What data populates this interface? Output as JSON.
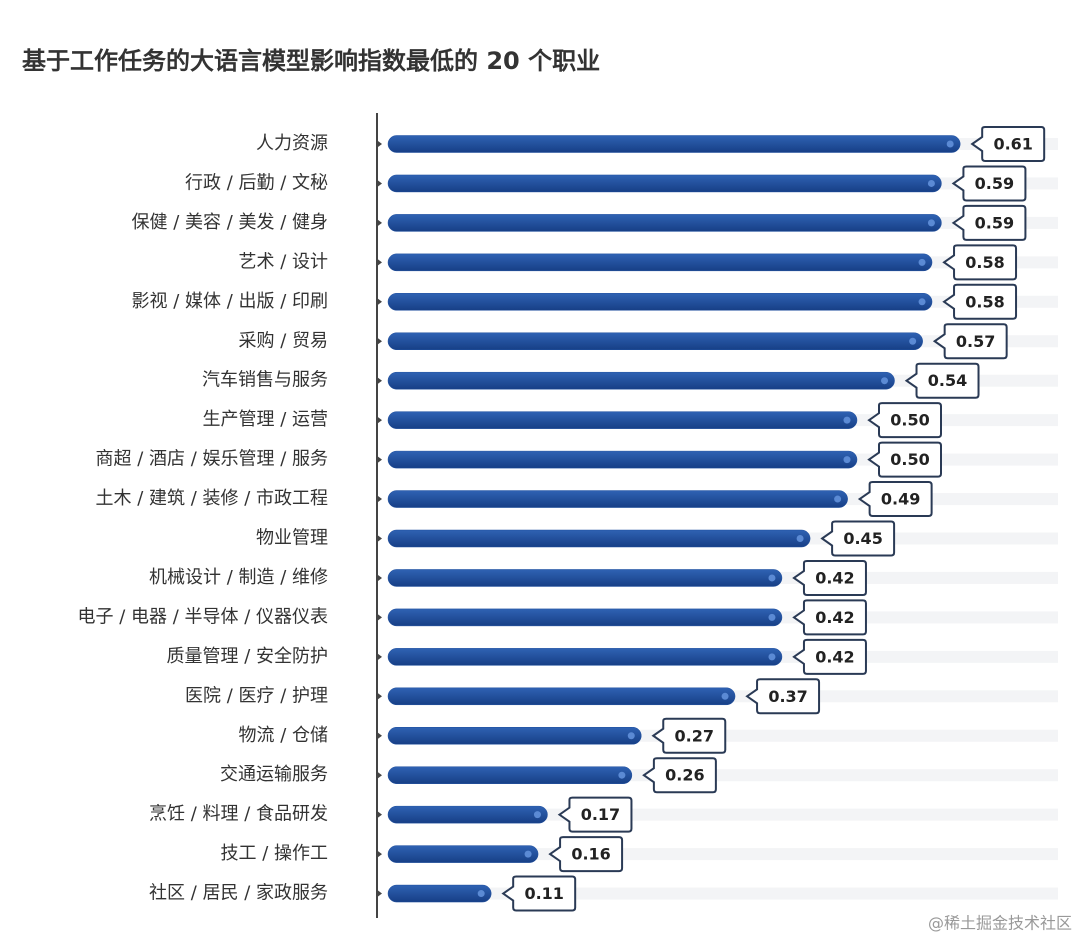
{
  "chart_data": {
    "type": "bar",
    "orientation": "horizontal",
    "title": "基于工作任务的大语言模型影响指数最低的 20 个职业",
    "categories": [
      "人力资源",
      "行政 / 后勤 / 文秘",
      "保健 / 美容 / 美发 / 健身",
      "艺术 / 设计",
      "影视 / 媒体 / 出版 / 印刷",
      "采购 / 贸易",
      "汽车销售与服务",
      "生产管理 / 运营",
      "商超 / 酒店 / 娱乐管理 / 服务",
      "土木 / 建筑 / 装修 / 市政工程",
      "物业管理",
      "机械设计 / 制造 / 维修",
      "电子 / 电器 / 半导体 / 仪器仪表",
      "质量管理 / 安全防护",
      "医院 / 医疗 / 护理",
      "物流 / 仓储",
      "交通运输服务",
      "烹饪 / 料理 / 食品研发",
      "技工 / 操作工",
      "社区 / 居民 / 家政服务"
    ],
    "values": [
      0.61,
      0.59,
      0.59,
      0.58,
      0.58,
      0.57,
      0.54,
      0.5,
      0.5,
      0.49,
      0.45,
      0.42,
      0.42,
      0.42,
      0.37,
      0.27,
      0.26,
      0.17,
      0.16,
      0.11
    ],
    "value_labels": [
      "0.61",
      "0.59",
      "0.59",
      "0.58",
      "0.58",
      "0.57",
      "0.54",
      "0.50",
      "0.50",
      "0.49",
      "0.45",
      "0.42",
      "0.42",
      "0.42",
      "0.37",
      "0.27",
      "0.26",
      "0.17",
      "0.16",
      "0.11"
    ],
    "color": "#1f4f9e",
    "watermark": "@稀土掘金技术社区"
  }
}
